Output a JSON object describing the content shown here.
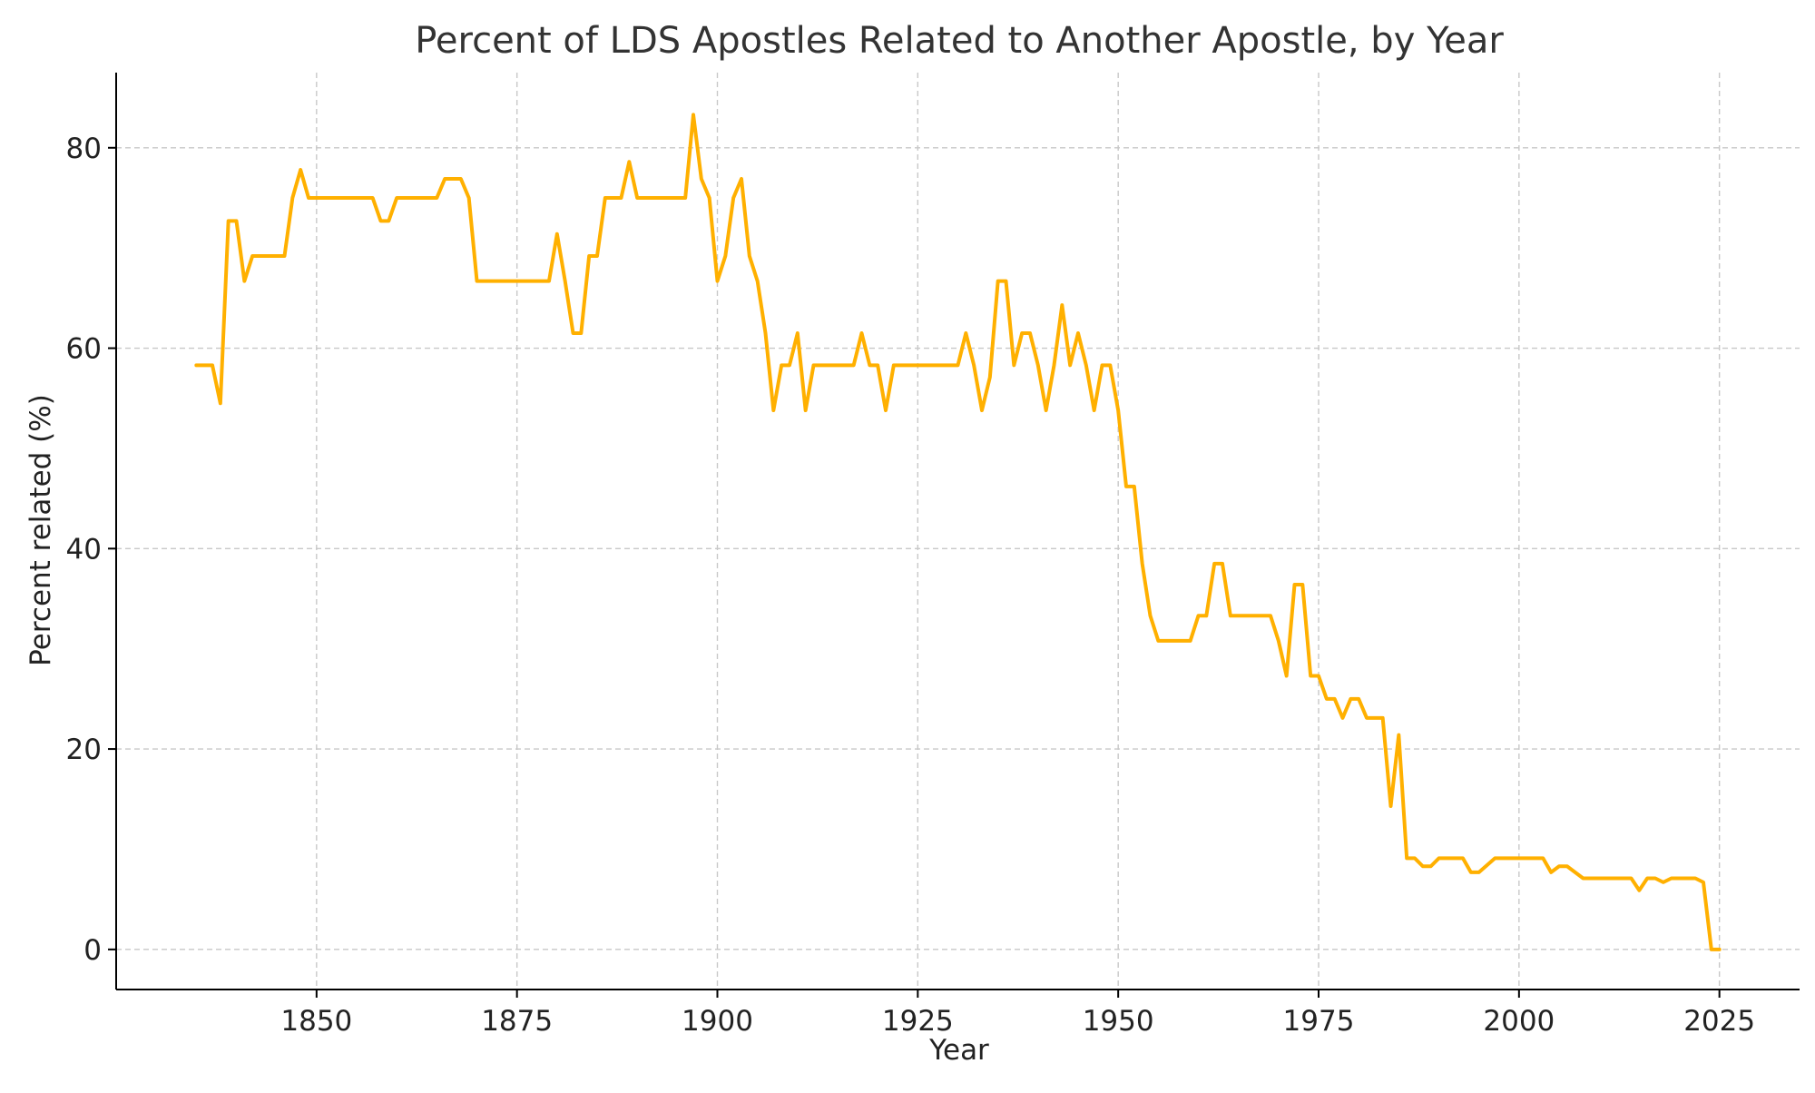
{
  "chart_data": {
    "type": "line",
    "title": "Percent of LDS Apostles Related to Another Apostle, by Year",
    "xlabel": "Year",
    "ylabel": "Percent related (%)",
    "xlim": [
      1825,
      2035
    ],
    "ylim": [
      -4,
      87.5
    ],
    "xticks": [
      1850,
      1875,
      1900,
      1925,
      1950,
      1975,
      2000,
      2025
    ],
    "yticks": [
      0,
      20,
      40,
      60,
      80
    ],
    "grid": true,
    "series": [
      {
        "color": "#FFB000",
        "points": [
          [
            1835,
            58.3
          ],
          [
            1837,
            58.3
          ],
          [
            1838,
            54.5
          ],
          [
            1839,
            72.7
          ],
          [
            1840,
            72.7
          ],
          [
            1841,
            66.7
          ],
          [
            1842,
            69.2
          ],
          [
            1846,
            69.2
          ],
          [
            1847,
            75.0
          ],
          [
            1848,
            77.8
          ],
          [
            1849,
            75.0
          ],
          [
            1857,
            75.0
          ],
          [
            1858,
            72.7
          ],
          [
            1859,
            72.7
          ],
          [
            1860,
            75.0
          ],
          [
            1865,
            75.0
          ],
          [
            1866,
            76.9
          ],
          [
            1868,
            76.9
          ],
          [
            1869,
            75.0
          ],
          [
            1870,
            66.7
          ],
          [
            1879,
            66.7
          ],
          [
            1880,
            71.4
          ],
          [
            1881,
            66.7
          ],
          [
            1882,
            61.5
          ],
          [
            1883,
            61.5
          ],
          [
            1884,
            69.2
          ],
          [
            1885,
            69.2
          ],
          [
            1886,
            75.0
          ],
          [
            1888,
            75.0
          ],
          [
            1889,
            78.6
          ],
          [
            1890,
            75.0
          ],
          [
            1896,
            75.0
          ],
          [
            1897,
            83.3
          ],
          [
            1898,
            76.9
          ],
          [
            1899,
            75.0
          ],
          [
            1900,
            66.7
          ],
          [
            1901,
            69.2
          ],
          [
            1902,
            75.0
          ],
          [
            1903,
            76.9
          ],
          [
            1904,
            69.2
          ],
          [
            1905,
            66.7
          ],
          [
            1906,
            61.5
          ],
          [
            1907,
            53.8
          ],
          [
            1908,
            58.3
          ],
          [
            1909,
            58.3
          ],
          [
            1910,
            61.5
          ],
          [
            1911,
            53.8
          ],
          [
            1912,
            58.3
          ],
          [
            1917,
            58.3
          ],
          [
            1918,
            61.5
          ],
          [
            1919,
            58.3
          ],
          [
            1920,
            58.3
          ],
          [
            1921,
            53.8
          ],
          [
            1922,
            58.3
          ],
          [
            1930,
            58.3
          ],
          [
            1931,
            61.5
          ],
          [
            1932,
            58.3
          ],
          [
            1933,
            53.8
          ],
          [
            1934,
            57.1
          ],
          [
            1935,
            66.7
          ],
          [
            1936,
            66.7
          ],
          [
            1937,
            58.3
          ],
          [
            1938,
            61.5
          ],
          [
            1939,
            61.5
          ],
          [
            1940,
            58.3
          ],
          [
            1941,
            53.8
          ],
          [
            1942,
            58.3
          ],
          [
            1943,
            64.3
          ],
          [
            1944,
            58.3
          ],
          [
            1945,
            61.5
          ],
          [
            1946,
            58.3
          ],
          [
            1947,
            53.8
          ],
          [
            1948,
            58.3
          ],
          [
            1949,
            58.3
          ],
          [
            1950,
            53.8
          ],
          [
            1951,
            46.2
          ],
          [
            1952,
            46.2
          ],
          [
            1953,
            38.5
          ],
          [
            1954,
            33.3
          ],
          [
            1955,
            30.8
          ],
          [
            1959,
            30.8
          ],
          [
            1960,
            33.3
          ],
          [
            1961,
            33.3
          ],
          [
            1962,
            38.5
          ],
          [
            1963,
            38.5
          ],
          [
            1964,
            33.3
          ],
          [
            1969,
            33.3
          ],
          [
            1970,
            30.8
          ],
          [
            1971,
            27.3
          ],
          [
            1972,
            36.4
          ],
          [
            1973,
            36.4
          ],
          [
            1974,
            27.3
          ],
          [
            1975,
            27.3
          ],
          [
            1976,
            25.0
          ],
          [
            1977,
            25.0
          ],
          [
            1978,
            23.1
          ],
          [
            1979,
            25.0
          ],
          [
            1980,
            25.0
          ],
          [
            1981,
            23.1
          ],
          [
            1983,
            23.1
          ],
          [
            1984,
            14.3
          ],
          [
            1985,
            21.4
          ],
          [
            1986,
            9.1
          ],
          [
            1987,
            9.1
          ],
          [
            1988,
            8.3
          ],
          [
            1989,
            8.3
          ],
          [
            1990,
            9.1
          ],
          [
            1993,
            9.1
          ],
          [
            1994,
            7.7
          ],
          [
            1995,
            7.7
          ],
          [
            1997,
            9.1
          ],
          [
            2003,
            9.1
          ],
          [
            2004,
            7.7
          ],
          [
            2005,
            8.3
          ],
          [
            2006,
            8.3
          ],
          [
            2008,
            7.1
          ],
          [
            2014,
            7.1
          ],
          [
            2015,
            5.9
          ],
          [
            2016,
            7.1
          ],
          [
            2017,
            7.1
          ],
          [
            2018,
            6.7
          ],
          [
            2019,
            7.1
          ],
          [
            2022,
            7.1
          ],
          [
            2023,
            6.7
          ],
          [
            2024,
            0.0
          ],
          [
            2025,
            0.0
          ]
        ]
      }
    ]
  }
}
